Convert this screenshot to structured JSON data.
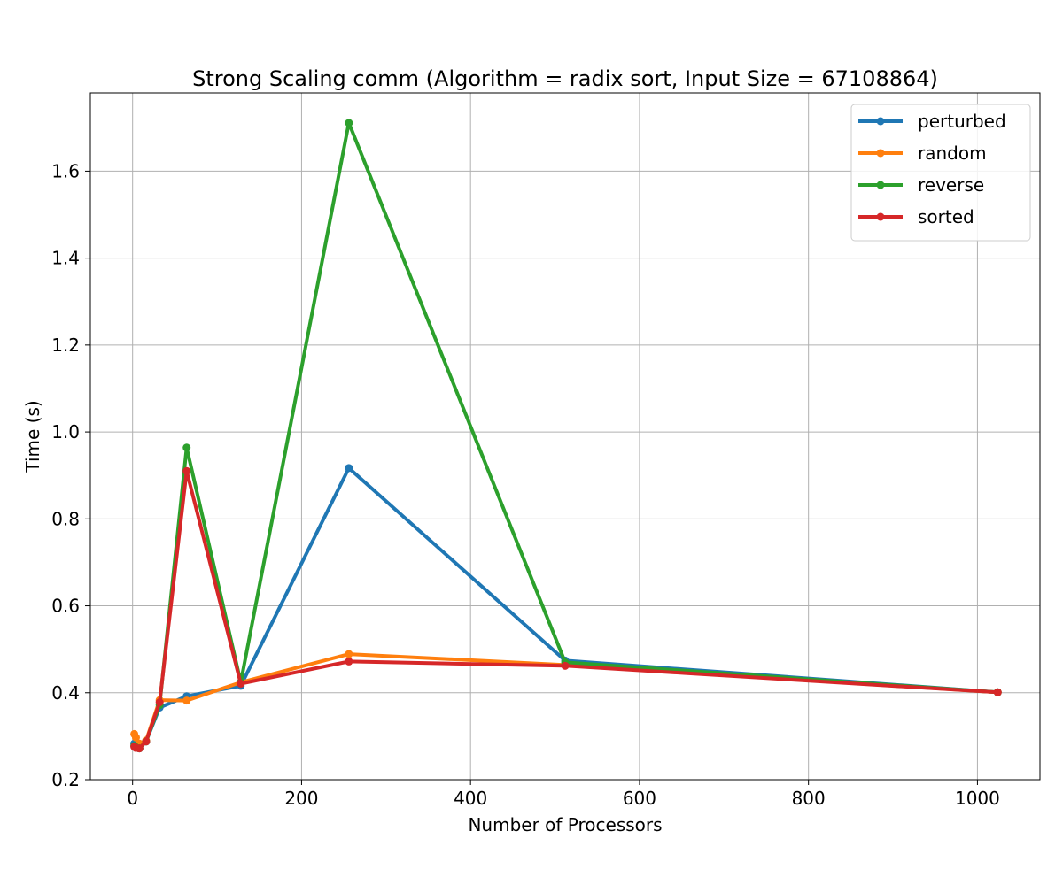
{
  "chart_data": {
    "type": "line",
    "title": "Strong Scaling comm (Algorithm = radix sort, Input Size = 67108864)",
    "xlabel": "Number of Processors",
    "ylabel": "Time (s)",
    "xlim": [
      -50,
      1074
    ],
    "ylim": [
      0.2,
      1.78
    ],
    "xticks": [
      0,
      200,
      400,
      600,
      800,
      1000
    ],
    "yticks": [
      0.2,
      0.4,
      0.6,
      0.8,
      1.0,
      1.2,
      1.4,
      1.6
    ],
    "xtick_labels": [
      "0",
      "200",
      "400",
      "600",
      "800",
      "1000"
    ],
    "ytick_labels": [
      "0.2",
      "0.4",
      "0.6",
      "0.8",
      "1.0",
      "1.2",
      "1.4",
      "1.6"
    ],
    "grid": true,
    "legend_position": "top-right",
    "x": [
      2,
      4,
      8,
      16,
      32,
      64,
      128,
      256,
      512,
      1024
    ],
    "series": [
      {
        "name": "perturbed",
        "color": "#1f77b4",
        "values": [
          0.283,
          0.275,
          0.272,
          0.288,
          0.366,
          0.392,
          0.416,
          0.917,
          0.474,
          0.401
        ]
      },
      {
        "name": "random",
        "color": "#ff7f0e",
        "values": [
          0.305,
          0.297,
          0.283,
          0.29,
          0.383,
          0.382,
          0.424,
          0.489,
          0.464,
          0.401
        ]
      },
      {
        "name": "reverse",
        "color": "#2ca02c",
        "values": [
          0.278,
          0.274,
          0.272,
          0.288,
          0.372,
          0.964,
          0.424,
          1.711,
          0.47,
          0.401
        ]
      },
      {
        "name": "sorted",
        "color": "#d62728",
        "values": [
          0.276,
          0.273,
          0.272,
          0.288,
          0.378,
          0.91,
          0.421,
          0.472,
          0.462,
          0.401
        ]
      }
    ]
  }
}
